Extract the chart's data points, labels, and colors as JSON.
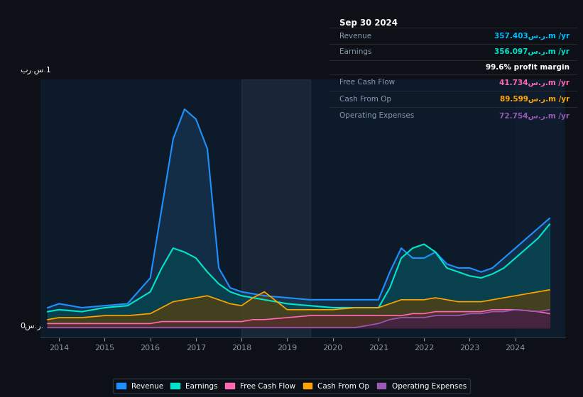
{
  "bg_color": "#0d1117",
  "plot_bg_color": "#0d1a2a",
  "title": "Sep 30 2024",
  "ylabel_top": "بر.س.1",
  "ylabel_bottom": "0س.ر.",
  "info_box": {
    "Revenue": {
      "value": "357.403س.ر.m /yr",
      "color": "#00bfff"
    },
    "Earnings": {
      "value": "356.097س.ر.m /yr",
      "color": "#00e5cc"
    },
    "profit_margin": "99.6% profit margin",
    "Free Cash Flow": {
      "value": "41.734س.ر.m /yr",
      "color": "#ff69b4"
    },
    "Cash From Op": {
      "value": "89.599س.ر.m /yr",
      "color": "#ffa500"
    },
    "Operating Expenses": {
      "value": "72.754س.ر.m /yr",
      "color": "#9b59b6"
    }
  },
  "x_years": [
    2013.75,
    2014,
    2014.5,
    2015,
    2015.5,
    2016,
    2016.25,
    2016.5,
    2016.75,
    2017,
    2017.25,
    2017.5,
    2017.75,
    2018,
    2018.25,
    2018.5,
    2019,
    2019.5,
    2020,
    2020.5,
    2021,
    2021.25,
    2021.5,
    2021.75,
    2022,
    2022.25,
    2022.5,
    2022.75,
    2023,
    2023.25,
    2023.5,
    2023.75,
    2024,
    2024.5,
    2024.75
  ],
  "revenue": [
    0.1,
    0.12,
    0.1,
    0.11,
    0.12,
    0.25,
    0.6,
    0.95,
    1.1,
    1.05,
    0.9,
    0.3,
    0.2,
    0.18,
    0.17,
    0.16,
    0.15,
    0.14,
    0.14,
    0.14,
    0.14,
    0.28,
    0.4,
    0.35,
    0.35,
    0.38,
    0.32,
    0.3,
    0.3,
    0.28,
    0.3,
    0.35,
    0.4,
    0.5,
    0.55
  ],
  "earnings": [
    0.08,
    0.09,
    0.08,
    0.1,
    0.11,
    0.18,
    0.3,
    0.4,
    0.38,
    0.35,
    0.28,
    0.22,
    0.18,
    0.16,
    0.15,
    0.14,
    0.12,
    0.11,
    0.1,
    0.1,
    0.1,
    0.2,
    0.35,
    0.4,
    0.42,
    0.38,
    0.3,
    0.28,
    0.26,
    0.25,
    0.27,
    0.3,
    0.35,
    0.45,
    0.52
  ],
  "free_cash_flow": [
    0.02,
    0.02,
    0.02,
    0.02,
    0.02,
    0.02,
    0.03,
    0.03,
    0.03,
    0.03,
    0.03,
    0.03,
    0.03,
    0.03,
    0.04,
    0.04,
    0.05,
    0.06,
    0.06,
    0.06,
    0.06,
    0.06,
    0.06,
    0.07,
    0.07,
    0.08,
    0.08,
    0.08,
    0.08,
    0.08,
    0.09,
    0.09,
    0.09,
    0.08,
    0.07
  ],
  "cash_from_op": [
    0.04,
    0.05,
    0.05,
    0.06,
    0.06,
    0.07,
    0.1,
    0.13,
    0.14,
    0.15,
    0.16,
    0.14,
    0.12,
    0.11,
    0.15,
    0.18,
    0.09,
    0.09,
    0.09,
    0.1,
    0.1,
    0.12,
    0.14,
    0.14,
    0.14,
    0.15,
    0.14,
    0.13,
    0.13,
    0.13,
    0.14,
    0.15,
    0.16,
    0.18,
    0.19
  ],
  "op_expenses": [
    0.0,
    0.0,
    0.0,
    0.0,
    0.0,
    0.0,
    0.0,
    0.0,
    0.0,
    0.0,
    0.0,
    0.0,
    0.0,
    0.0,
    0.0,
    0.0,
    0.0,
    0.0,
    0.0,
    0.0,
    0.02,
    0.04,
    0.05,
    0.05,
    0.05,
    0.06,
    0.06,
    0.06,
    0.07,
    0.07,
    0.08,
    0.08,
    0.09,
    0.08,
    0.09
  ],
  "colors": {
    "revenue": "#1e90ff",
    "earnings": "#00e5cc",
    "free_cash_flow": "#ff69b4",
    "cash_from_op": "#ffa500",
    "op_expenses": "#9b59b6",
    "revenue_fill": "#1a4a70",
    "earnings_fill": "#005555",
    "free_cash_flow_fill": "#6a1a35",
    "cash_from_op_fill": "#6a4000",
    "op_expenses_fill": "#3a1a55",
    "highlight_bg": "#1e3050"
  },
  "legend": [
    {
      "label": "Revenue",
      "color": "#1e90ff"
    },
    {
      "label": "Earnings",
      "color": "#00e5cc"
    },
    {
      "label": "Free Cash Flow",
      "color": "#ff69b4"
    },
    {
      "label": "Cash From Op",
      "color": "#ffa500"
    },
    {
      "label": "Operating Expenses",
      "color": "#9b59b6"
    }
  ]
}
